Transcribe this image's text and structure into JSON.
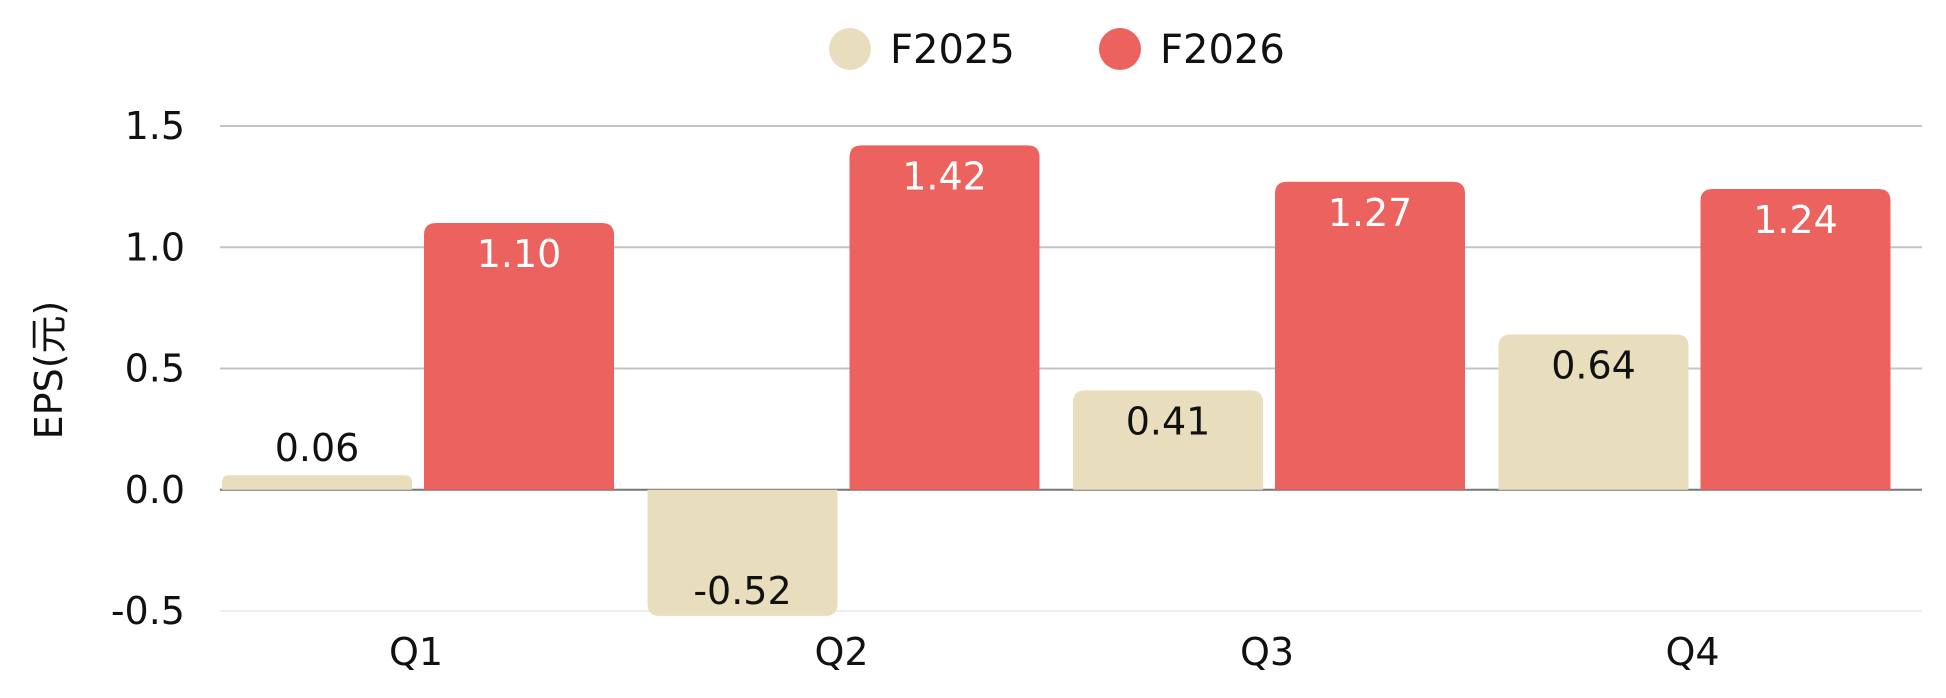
{
  "chart_data": {
    "type": "bar",
    "title": "",
    "xlabel": "",
    "ylabel": "EPS(元)",
    "categories": [
      "Q1",
      "Q2",
      "Q3",
      "Q4"
    ],
    "series": [
      {
        "name": "F2025",
        "values": [
          0.06,
          -0.52,
          0.41,
          0.64
        ],
        "labels": [
          "0.06",
          "-0.52",
          "0.41",
          "0.64"
        ],
        "color": "#E8DDBC",
        "label_color": "#111111"
      },
      {
        "name": "F2026",
        "values": [
          1.1,
          1.42,
          1.27,
          1.24
        ],
        "labels": [
          "1.10",
          "1.42",
          "1.27",
          "1.24"
        ],
        "color": "#EC625E",
        "label_color": "#ffffff"
      }
    ],
    "ylim": [
      -0.5,
      1.5
    ],
    "yticks": [
      -0.5,
      0.0,
      0.5,
      1.0,
      1.5
    ],
    "ytick_labels": [
      "-0.5",
      "0.0",
      "0.5",
      "1.0",
      "1.5"
    ],
    "grid": true,
    "legend_position": "top-center"
  }
}
